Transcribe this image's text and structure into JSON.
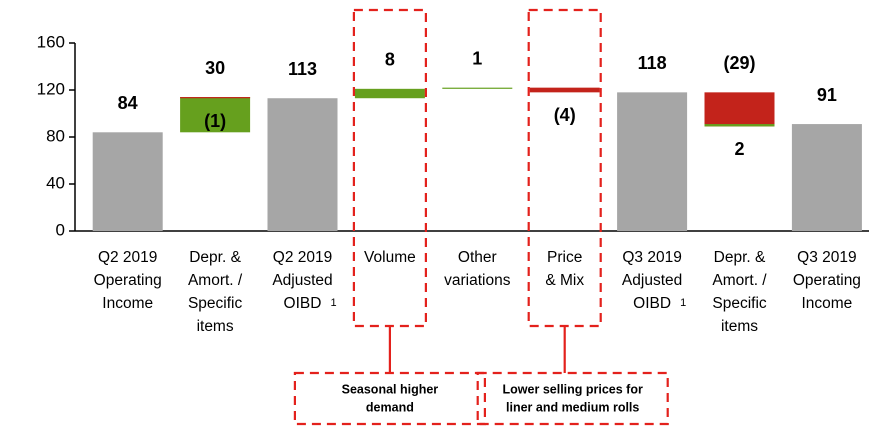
{
  "chart_data": {
    "type": "waterfall",
    "categories": [
      [
        "Q2 2019",
        "Operating",
        "Income"
      ],
      [
        "Depr. &",
        "Amort. /",
        "Specific",
        "items"
      ],
      [
        "Q2 2019",
        "Adjusted",
        "OIBD"
      ],
      [
        "Volume"
      ],
      [
        "Other",
        "variations"
      ],
      [
        "Price",
        "& Mix"
      ],
      [
        "Q3 2019",
        "Adjusted",
        "OIBD"
      ],
      [
        "Depr. &",
        "Amort. /",
        "Specific",
        "items"
      ],
      [
        "Q3 2019",
        "Operating",
        "Income"
      ]
    ],
    "footnotes": [
      {
        "category": 2,
        "mark": "1"
      },
      {
        "category": 6,
        "mark": "1"
      }
    ],
    "bars": [
      {
        "category": 0,
        "kind": "total",
        "value": 84,
        "label": "84"
      },
      {
        "category": 1,
        "kind": "increase",
        "value": 30,
        "label": "30"
      },
      {
        "category": 1,
        "kind": "decrease",
        "value": -1,
        "label": "(1)"
      },
      {
        "category": 2,
        "kind": "total",
        "value": 113,
        "label": "113"
      },
      {
        "category": 3,
        "kind": "increase",
        "value": 8,
        "label": "8"
      },
      {
        "category": 4,
        "kind": "increase",
        "value": 1,
        "label": "1"
      },
      {
        "category": 5,
        "kind": "decrease",
        "value": -4,
        "label": "(4)"
      },
      {
        "category": 6,
        "kind": "total",
        "value": 118,
        "label": "118"
      },
      {
        "category": 7,
        "kind": "decrease",
        "value": -29,
        "label": "(29)"
      },
      {
        "category": 7,
        "kind": "increase",
        "value": 2,
        "label": "2"
      },
      {
        "category": 8,
        "kind": "total",
        "value": 91,
        "label": "91"
      }
    ],
    "colors": {
      "total": "#a6a6a6",
      "increase": "#66a01e",
      "decrease": "#c3231b"
    },
    "ylim": [
      0,
      160
    ],
    "yticks": [
      0,
      40,
      80,
      120,
      160
    ],
    "annotations": [
      {
        "category": 3,
        "lines": [
          "Seasonal higher",
          "demand"
        ]
      },
      {
        "category": 5,
        "lines": [
          "Lower selling prices for",
          "liner and medium rolls"
        ]
      }
    ]
  }
}
